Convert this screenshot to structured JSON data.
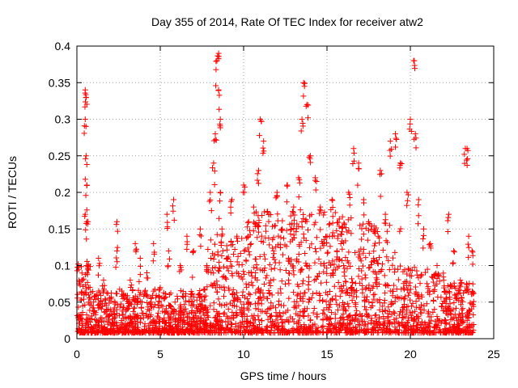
{
  "chart_data": {
    "type": "scatter",
    "title": "Day 355 of 2014, Rate Of TEC Index for receiver atw2",
    "xlabel": "GPS time / hours",
    "ylabel": "ROTI / TECUs",
    "xlim": [
      0,
      25
    ],
    "ylim": [
      0,
      0.4
    ],
    "xticks": [
      0,
      5,
      10,
      15,
      20,
      25
    ],
    "xtick_labels": [
      "0",
      "5",
      "10",
      "15",
      "20",
      "25"
    ],
    "yticks": [
      0,
      0.05,
      0.1,
      0.15,
      0.2,
      0.25,
      0.3,
      0.35,
      0.4
    ],
    "ytick_labels": [
      "0",
      "0.05",
      "0.1",
      "0.15",
      "0.2",
      "0.25",
      "0.3",
      "0.35",
      "0.4"
    ],
    "grid": true,
    "marker": "+",
    "marker_color": "#ff0000",
    "series": [
      {
        "name": "ROTI",
        "x": [
          0.1,
          0.3,
          0.5,
          0.5,
          0.5,
          0.55,
          0.55,
          0.6,
          0.6,
          0.6,
          0.7,
          1.0,
          1.3,
          1.6,
          2.0,
          2.4,
          2.4,
          2.8,
          3.2,
          3.5,
          3.8,
          4.2,
          4.6,
          5.0,
          5.4,
          5.5,
          5.8,
          6.2,
          6.6,
          7.0,
          7.4,
          7.8,
          8.0,
          8.2,
          8.3,
          8.4,
          8.5,
          8.5,
          8.6,
          8.6,
          8.7,
          9.0,
          9.3,
          9.6,
          10.0,
          10.3,
          10.6,
          10.9,
          11.0,
          11.2,
          11.5,
          11.8,
          12.0,
          12.3,
          12.6,
          13.0,
          13.3,
          13.5,
          13.6,
          13.8,
          14.0,
          14.3,
          14.6,
          15.0,
          15.3,
          15.6,
          16.0,
          16.3,
          16.6,
          16.9,
          17.2,
          17.5,
          17.8,
          18.2,
          18.5,
          18.8,
          19.1,
          19.4,
          19.8,
          20.0,
          20.2,
          20.3,
          20.5,
          20.8,
          21.2,
          21.6,
          22.0,
          22.3,
          22.6,
          23.0,
          23.3,
          23.4,
          23.5,
          23.7
        ],
        "y": [
          0.03,
          0.08,
          0.17,
          0.3,
          0.34,
          0.25,
          0.33,
          0.21,
          0.16,
          0.1,
          0.06,
          0.05,
          0.11,
          0.08,
          0.04,
          0.16,
          0.12,
          0.06,
          0.08,
          0.13,
          0.11,
          0.09,
          0.13,
          0.07,
          0.17,
          0.12,
          0.19,
          0.1,
          0.14,
          0.12,
          0.15,
          0.1,
          0.2,
          0.24,
          0.28,
          0.38,
          0.34,
          0.39,
          0.3,
          0.2,
          0.15,
          0.11,
          0.19,
          0.14,
          0.21,
          0.16,
          0.18,
          0.23,
          0.3,
          0.27,
          0.17,
          0.12,
          0.2,
          0.15,
          0.21,
          0.18,
          0.22,
          0.3,
          0.35,
          0.32,
          0.25,
          0.22,
          0.18,
          0.14,
          0.19,
          0.12,
          0.1,
          0.2,
          0.26,
          0.24,
          0.19,
          0.16,
          0.11,
          0.23,
          0.17,
          0.27,
          0.28,
          0.24,
          0.2,
          0.3,
          0.38,
          0.28,
          0.19,
          0.15,
          0.13,
          0.1,
          0.08,
          0.17,
          0.12,
          0.08,
          0.26,
          0.26,
          0.14,
          0.12
        ],
        "envelope_note": "dense cloud of several thousand points mostly between 0.01 and 0.15 across 0-23.8 hours"
      }
    ]
  }
}
